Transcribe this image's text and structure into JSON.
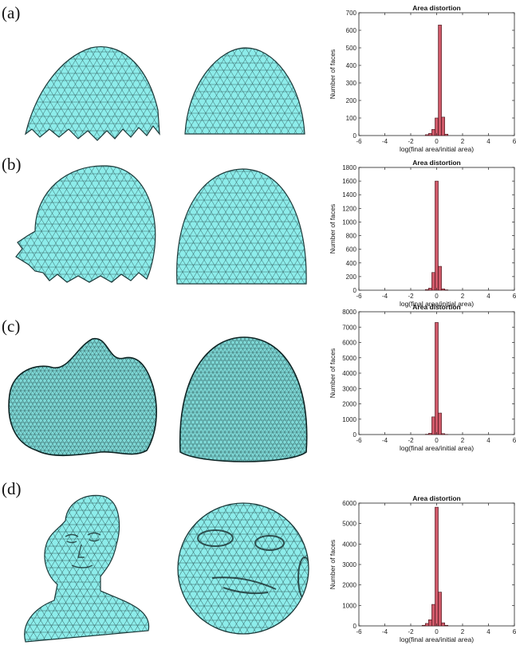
{
  "colors": {
    "mesh_fill": "#8cecea",
    "mesh_line": "#1c3a3a",
    "bar_fill": "#d05a6a",
    "bar_edge": "#3a0f14"
  },
  "panels": [
    {
      "label": "(a)",
      "shape": "cap",
      "chart_title": "Area distortion",
      "ylabel": "Number of faces",
      "xlabel": "log(final area/initial area)"
    },
    {
      "label": "(b)",
      "shape": "head",
      "chart_title": "Area distortion",
      "ylabel": "Number of faces",
      "xlabel": "log(final area/initial area)"
    },
    {
      "label": "(c)",
      "shape": "tooth",
      "chart_title": "Area distortion",
      "ylabel": "Number of faces",
      "xlabel": "log(final area/initial area)"
    },
    {
      "label": "(d)",
      "shape": "bust",
      "chart_title": "Area distortion",
      "ylabel": "Number of faces",
      "xlabel": "log(final area/initial area)"
    }
  ],
  "chart_data": [
    {
      "type": "bar",
      "title": "Area distortion",
      "xlabel": "log(final area/initial area)",
      "ylabel": "Number of faces",
      "xlim": [
        -6,
        6
      ],
      "ylim": [
        0,
        700
      ],
      "xticks": [
        -6,
        -4,
        -2,
        0,
        2,
        4,
        6
      ],
      "yticks": [
        0,
        100,
        200,
        300,
        400,
        500,
        600,
        700
      ],
      "bin_width": 0.25,
      "bins": [
        {
          "x": -0.75,
          "value": 5
        },
        {
          "x": -0.5,
          "value": 12
        },
        {
          "x": -0.25,
          "value": 35
        },
        {
          "x": 0.0,
          "value": 100
        },
        {
          "x": 0.25,
          "value": 630
        },
        {
          "x": 0.5,
          "value": 105
        },
        {
          "x": 0.75,
          "value": 8
        }
      ]
    },
    {
      "type": "bar",
      "title": "Area distortion",
      "xlabel": "log(final area/initial area)",
      "ylabel": "Number of faces",
      "xlim": [
        -6,
        6
      ],
      "ylim": [
        0,
        1800
      ],
      "xticks": [
        -6,
        -4,
        -2,
        0,
        2,
        4,
        6
      ],
      "yticks": [
        0,
        200,
        400,
        600,
        800,
        1000,
        1200,
        1400,
        1600,
        1800
      ],
      "bin_width": 0.25,
      "bins": [
        {
          "x": -0.75,
          "value": 10
        },
        {
          "x": -0.5,
          "value": 30
        },
        {
          "x": -0.25,
          "value": 260
        },
        {
          "x": 0.0,
          "value": 1600
        },
        {
          "x": 0.25,
          "value": 350
        },
        {
          "x": 0.5,
          "value": 20
        },
        {
          "x": 0.75,
          "value": 5
        }
      ]
    },
    {
      "type": "bar",
      "title": "Area distortion",
      "xlabel": "log(final area/initial area)",
      "ylabel": "Number of faces",
      "xlim": [
        -6,
        6
      ],
      "ylim": [
        0,
        8000
      ],
      "xticks": [
        -6,
        -4,
        -2,
        0,
        2,
        4,
        6
      ],
      "yticks": [
        0,
        1000,
        2000,
        3000,
        4000,
        5000,
        6000,
        7000,
        8000
      ],
      "bin_width": 0.25,
      "bins": [
        {
          "x": -0.75,
          "value": 20
        },
        {
          "x": -0.5,
          "value": 80
        },
        {
          "x": -0.25,
          "value": 1150
        },
        {
          "x": 0.0,
          "value": 7300
        },
        {
          "x": 0.25,
          "value": 1400
        },
        {
          "x": 0.5,
          "value": 60
        },
        {
          "x": 0.75,
          "value": 10
        }
      ]
    },
    {
      "type": "bar",
      "title": "Area distortion",
      "xlabel": "log(final area/initial area)",
      "ylabel": "Number of faces",
      "xlim": [
        -6,
        6
      ],
      "ylim": [
        0,
        6000
      ],
      "xticks": [
        -6,
        -4,
        -2,
        0,
        2,
        4,
        6
      ],
      "yticks": [
        0,
        1000,
        2000,
        3000,
        4000,
        5000,
        6000
      ],
      "bin_width": 0.25,
      "bins": [
        {
          "x": -1.0,
          "value": 30
        },
        {
          "x": -0.75,
          "value": 120
        },
        {
          "x": -0.5,
          "value": 300
        },
        {
          "x": -0.25,
          "value": 1050
        },
        {
          "x": 0.0,
          "value": 5800
        },
        {
          "x": 0.25,
          "value": 1650
        },
        {
          "x": 0.5,
          "value": 150
        },
        {
          "x": 0.75,
          "value": 30
        }
      ]
    }
  ]
}
